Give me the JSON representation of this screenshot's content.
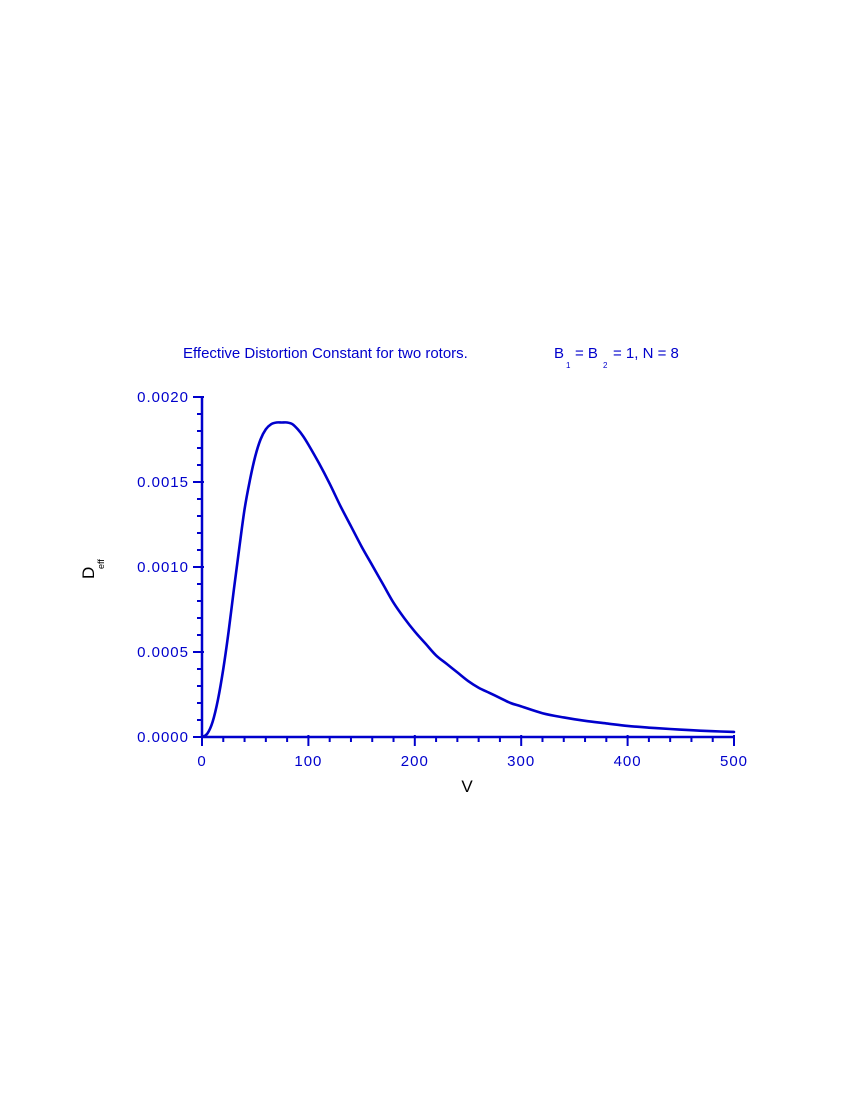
{
  "chart_data": {
    "type": "line",
    "title": {
      "main": "Effective  Distortion  Constant  for  two  rotors.",
      "b1": "B",
      "b1_sub": "1",
      "eq1": "= B",
      "b2_sub": "2",
      "rest": "= 1, N = 8"
    },
    "xlabel": "V",
    "ylabel": {
      "main": "D",
      "sub": "eff"
    },
    "xlim": [
      0,
      500
    ],
    "ylim": [
      0,
      0.002
    ],
    "x_ticks": [
      0,
      100,
      200,
      300,
      400,
      500
    ],
    "x_tick_labels": [
      "0",
      "100",
      "200",
      "300",
      "400",
      "500"
    ],
    "y_ticks": [
      0,
      0.0005,
      0.001,
      0.0015,
      0.002
    ],
    "y_tick_labels": [
      "0.0000",
      "0.0005",
      "0.0010",
      "0.0015",
      "0.0020"
    ],
    "grid": false,
    "line_color": "#0000cc",
    "axis_color": "#0000cc",
    "series": [
      {
        "x": [
          0,
          5,
          10,
          15,
          20,
          25,
          30,
          35,
          40,
          45,
          50,
          55,
          60,
          65,
          70,
          75,
          80,
          85,
          90,
          95,
          100,
          110,
          120,
          130,
          140,
          150,
          160,
          170,
          180,
          190,
          200,
          210,
          220,
          230,
          240,
          250,
          260,
          270,
          280,
          290,
          300,
          320,
          340,
          360,
          380,
          400,
          420,
          440,
          460,
          480,
          500
        ],
        "y": [
          0,
          2e-05,
          9e-05,
          0.00022,
          0.0004,
          0.00062,
          0.00087,
          0.00111,
          0.00134,
          0.00151,
          0.00165,
          0.00175,
          0.00181,
          0.00184,
          0.00185,
          0.00185,
          0.00185,
          0.00184,
          0.00181,
          0.00177,
          0.00172,
          0.00161,
          0.00149,
          0.00136,
          0.00124,
          0.00112,
          0.00101,
          0.0009,
          0.00079,
          0.0007,
          0.00062,
          0.00055,
          0.00048,
          0.00043,
          0.00038,
          0.00033,
          0.00029,
          0.00026,
          0.00023,
          0.0002,
          0.00018,
          0.00014,
          0.000115,
          9.5e-05,
          8e-05,
          6.5e-05,
          5.5e-05,
          4.7e-05,
          4e-05,
          3.4e-05,
          3e-05
        ]
      }
    ]
  }
}
